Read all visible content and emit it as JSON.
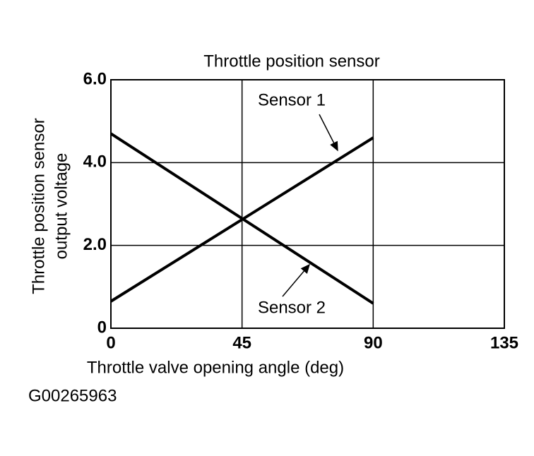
{
  "chart_data": {
    "type": "line",
    "title": "Throttle position sensor",
    "ylabel": [
      "Throttle position sensor",
      "output voltage"
    ],
    "xlabel": "Throttle valve opening angle (deg)",
    "footnote": "G00265963",
    "x": [
      0,
      90
    ],
    "series": [
      {
        "name": "Sensor 1",
        "color": "#000000",
        "values": [
          0.65,
          4.6
        ]
      },
      {
        "name": "Sensor 2",
        "color": "#000000",
        "values": [
          4.7,
          0.6
        ]
      }
    ],
    "xlim": [
      0,
      135
    ],
    "xticks": [
      0,
      45,
      90,
      135
    ],
    "ylim": [
      0,
      6
    ],
    "yticks": [
      0,
      {
        "value": 2,
        "label": "2.0"
      },
      {
        "value": 4,
        "label": "4.0"
      },
      {
        "value": 6,
        "label": "6.0"
      }
    ],
    "grid": true
  }
}
